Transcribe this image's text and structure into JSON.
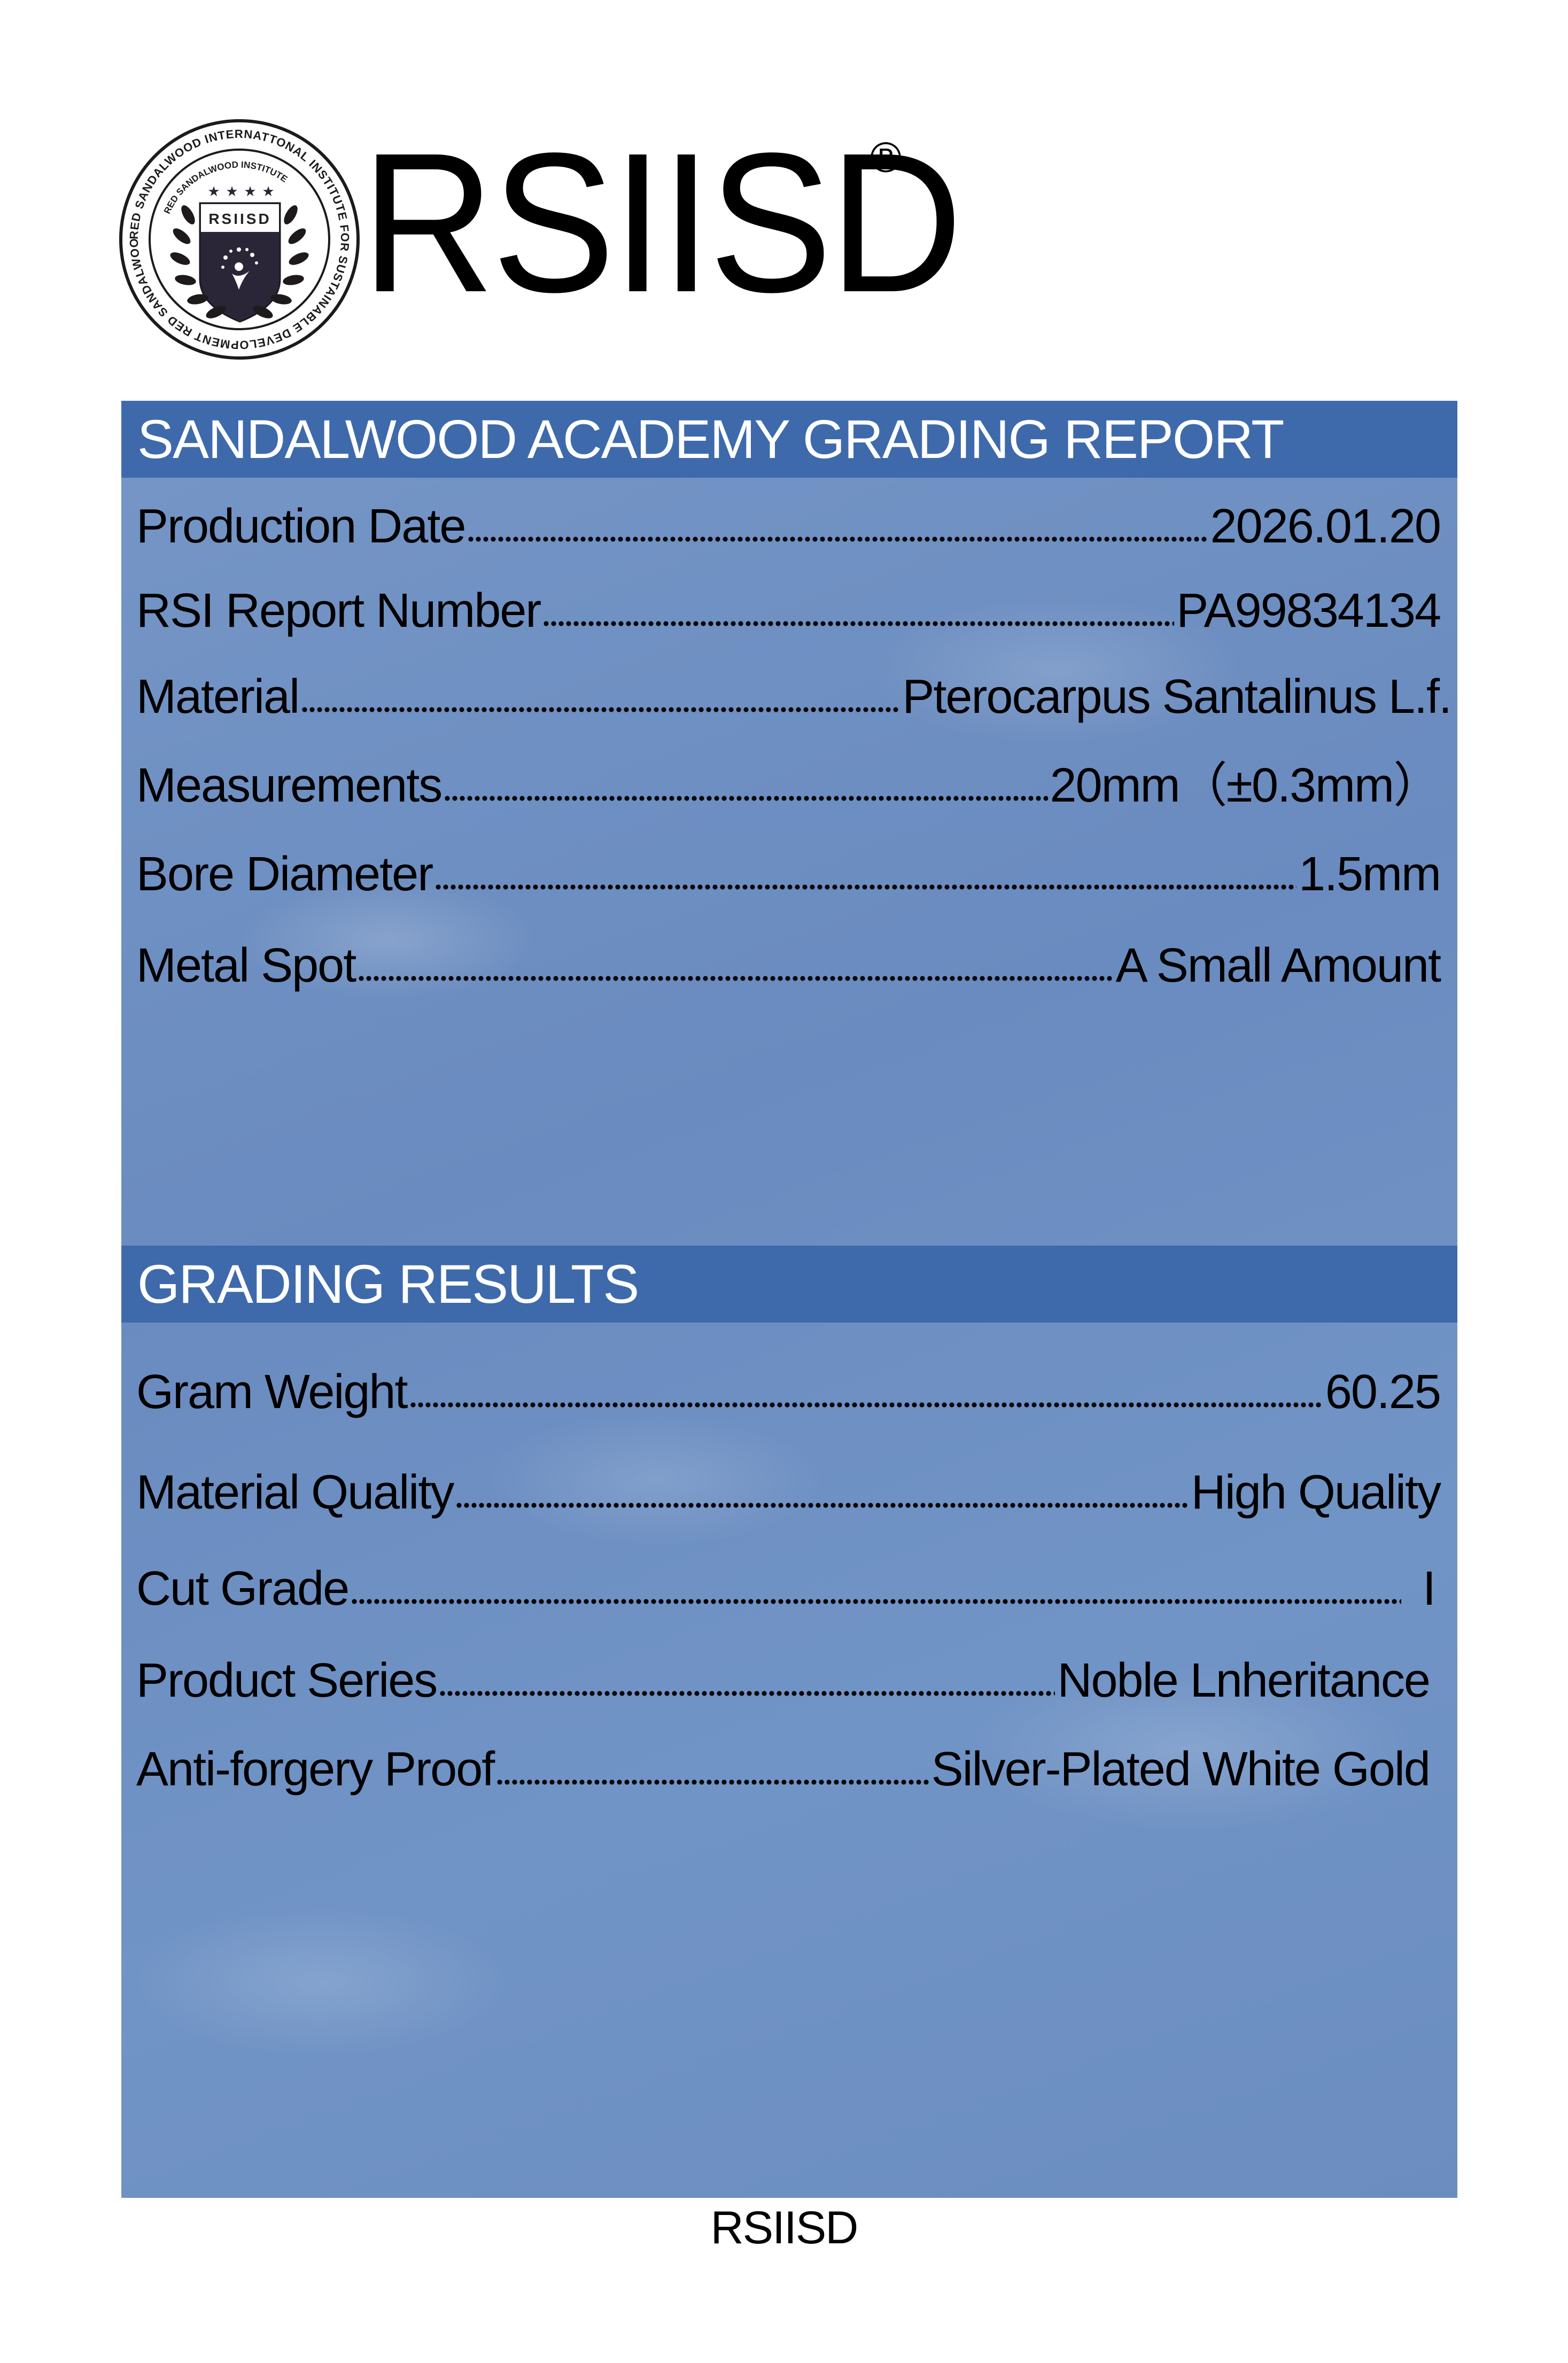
{
  "logo": {
    "outer_text": "RED SANDALWOOD INTERNATTONAL INSTITUTE FOR SUSTAINABLE DEVELOPMENT RED SANDALWOOD INSTITUTE",
    "inner_text": "RED SANDALWOOD INSTITUTE",
    "shield_text": "RSIISD"
  },
  "brand": {
    "name": "RSIISD",
    "registered_mark": "®"
  },
  "report": {
    "title": "SANDALWOOD ACADEMY GRADING REPORT",
    "rows": [
      {
        "label": "Production Date",
        "value": "2026.01.20"
      },
      {
        "label": "RSI Report Number",
        "value": "PA99834134"
      },
      {
        "label": "Material",
        "value": "Pterocarpus Santalinus L.f."
      },
      {
        "label": "Measurements",
        "value": "20mm（±0.3mm）"
      },
      {
        "label": "Bore Diameter",
        "value": "1.5mm"
      },
      {
        "label": "Metal Spot",
        "value": "A Small Amount"
      }
    ]
  },
  "results": {
    "title": "GRADING RESULTS",
    "rows": [
      {
        "label": "Gram Weight",
        "value": "60.25"
      },
      {
        "label": "Material Quality",
        "value": "High Quality"
      },
      {
        "label": "Cut Grade",
        "value": "I"
      },
      {
        "label": "Product Series",
        "value": "Noble Lnheritance"
      },
      {
        "label": "Anti-forgery Proof",
        "value": "Silver-Plated White Gold"
      }
    ]
  },
  "footer": {
    "text": "RSIISD"
  },
  "colors": {
    "header_bg": "#3e6aab",
    "panel_bg": "#6d8fc1",
    "header_text": "#ffffff"
  }
}
